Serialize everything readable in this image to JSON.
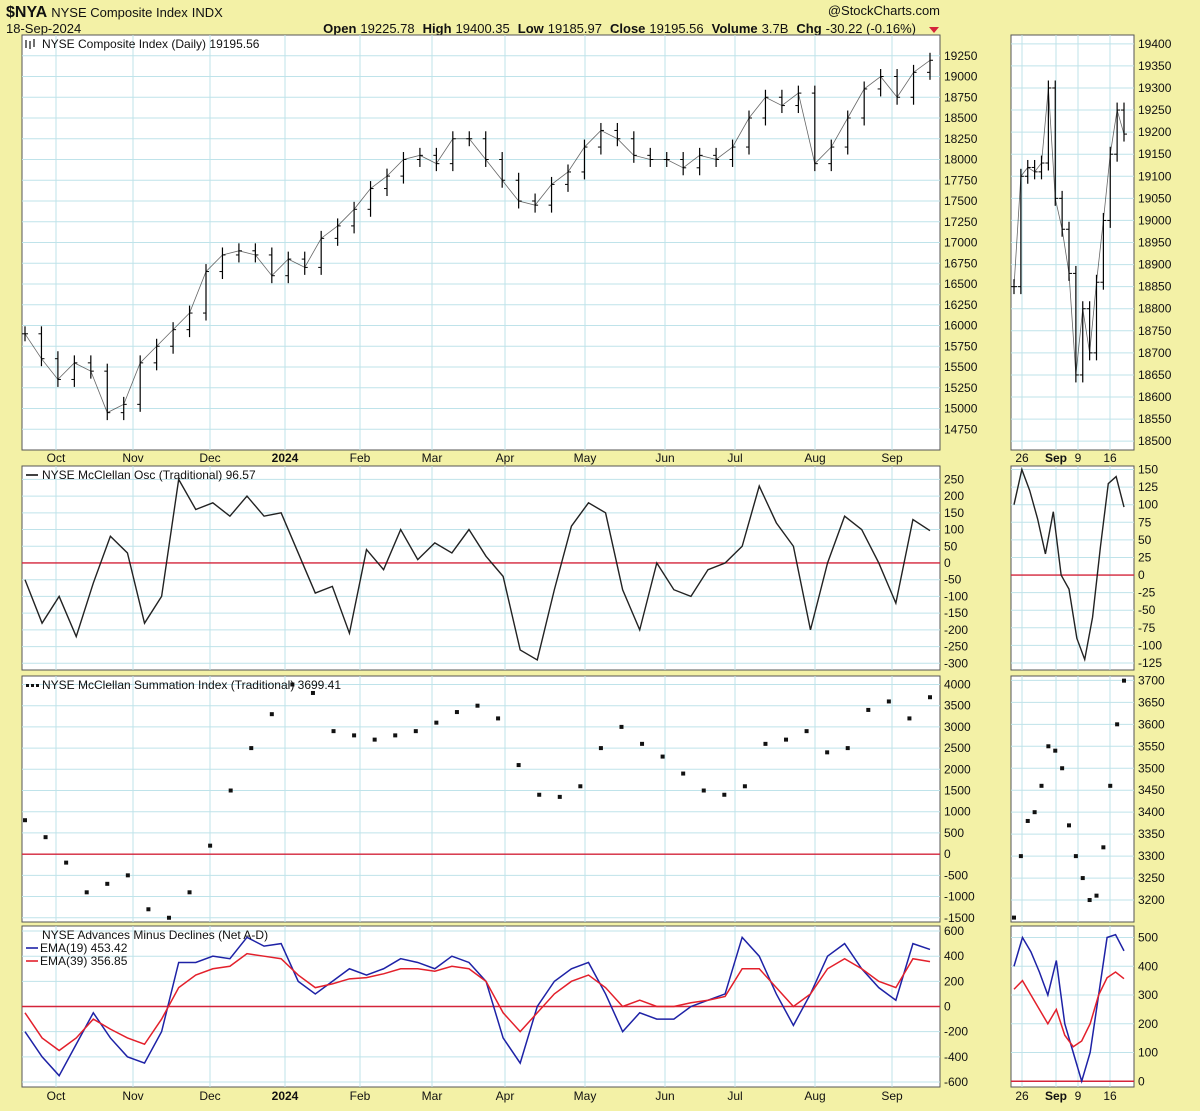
{
  "header": {
    "symbol": "$NYA",
    "name": "NYSE Composite Index",
    "exchange": "INDX",
    "date": "18-Sep-2024",
    "watermark": "@StockCharts.com",
    "open_label": "Open",
    "open": "19225.78",
    "high_label": "High",
    "high": "19400.35",
    "low_label": "Low",
    "low": "19185.97",
    "close_label": "Close",
    "close": "19195.56",
    "volume_label": "Volume",
    "volume": "3.7B",
    "chg_label": "Chg",
    "chg": "-30.22 (-0.16%)"
  },
  "colors": {
    "background": "#f3f1a6",
    "panel": "#ffffff",
    "grid": "#bfe3ea",
    "price": "#000000",
    "zero_line": "#d4243a",
    "ema19": "#1e22a6",
    "ema39": "#e3202b",
    "down_arrow": "#d4243a"
  },
  "x_axis": {
    "main_labels": [
      "Oct",
      "Nov",
      "Dec",
      "2024",
      "Feb",
      "Mar",
      "Apr",
      "May",
      "Jun",
      "Jul",
      "Aug",
      "Sep"
    ],
    "bold_label": "2024",
    "side_labels": [
      "26",
      "Sep",
      "9",
      "16"
    ],
    "side_bold_label": "Sep"
  },
  "chart_data": [
    {
      "type": "line",
      "title": "NYSE Composite Index (Daily) 19195.56",
      "style": "ohlc-bars",
      "x_range": [
        "2023-09-18",
        "2024-09-18"
      ],
      "ylim": [
        14500,
        19500
      ],
      "y_ticks": [
        14750,
        15000,
        15250,
        15500,
        15750,
        16000,
        16250,
        16500,
        16750,
        17000,
        17250,
        17500,
        17750,
        18000,
        18250,
        18500,
        18750,
        19000,
        19250
      ],
      "x": [
        "2023-09-18",
        "2023-09-28",
        "2023-10-04",
        "2023-10-12",
        "2023-10-20",
        "2023-10-27",
        "2023-11-01",
        "2023-11-08",
        "2023-11-15",
        "2023-11-22",
        "2023-12-01",
        "2023-12-08",
        "2023-12-15",
        "2023-12-22",
        "2023-12-29",
        "2024-01-05",
        "2024-01-12",
        "2024-01-17",
        "2024-01-24",
        "2024-02-01",
        "2024-02-09",
        "2024-02-16",
        "2024-02-23",
        "2024-03-01",
        "2024-03-08",
        "2024-03-15",
        "2024-03-21",
        "2024-03-28",
        "2024-04-05",
        "2024-04-12",
        "2024-04-16",
        "2024-04-19",
        "2024-04-26",
        "2024-05-03",
        "2024-05-10",
        "2024-05-15",
        "2024-05-21",
        "2024-05-28",
        "2024-05-31",
        "2024-06-07",
        "2024-06-14",
        "2024-06-21",
        "2024-06-28",
        "2024-07-05",
        "2024-07-12",
        "2024-07-16",
        "2024-07-24",
        "2024-07-31",
        "2024-08-05",
        "2024-08-09",
        "2024-08-16",
        "2024-08-23",
        "2024-08-30",
        "2024-09-06",
        "2024-09-12",
        "2024-09-18"
      ],
      "values": [
        15900,
        15600,
        15350,
        15550,
        15450,
        14950,
        15050,
        15550,
        15750,
        15950,
        16150,
        16650,
        16850,
        16900,
        16850,
        16600,
        16800,
        16700,
        17050,
        17200,
        17400,
        17650,
        17800,
        18000,
        18050,
        17950,
        18250,
        18250,
        18000,
        17750,
        17500,
        17450,
        17700,
        17850,
        18150,
        18350,
        18250,
        18050,
        18000,
        18000,
        17900,
        18050,
        18000,
        18150,
        18500,
        18750,
        18650,
        18800,
        17950,
        18150,
        18500,
        18850,
        19000,
        18750,
        19050,
        19195.56
      ]
    },
    {
      "type": "line",
      "title": "NYSE McClellan Osc (Traditional) 96.57",
      "ylim": [
        -320,
        290
      ],
      "y_ticks": [
        -300,
        -250,
        -200,
        -150,
        -100,
        -50,
        0,
        50,
        100,
        150,
        200,
        250
      ],
      "reference_line": 0,
      "values": [
        -50,
        -180,
        -100,
        -220,
        -60,
        80,
        30,
        -180,
        -100,
        250,
        160,
        180,
        140,
        200,
        140,
        150,
        30,
        -90,
        -70,
        -210,
        40,
        -20,
        100,
        10,
        60,
        30,
        100,
        20,
        -40,
        -260,
        -290,
        -80,
        110,
        180,
        150,
        -80,
        -200,
        0,
        -80,
        -100,
        -20,
        0,
        50,
        230,
        120,
        50,
        -200,
        0,
        140,
        100,
        0,
        -120,
        130,
        96.57
      ]
    },
    {
      "type": "scatter",
      "title": "NYSE McClellan Summation Index (Traditional) 3699.41",
      "ylim": [
        -1600,
        4200
      ],
      "y_ticks": [
        -1500,
        -1000,
        -500,
        0,
        500,
        1000,
        1500,
        2000,
        2500,
        3000,
        3500,
        4000
      ],
      "reference_line": 0,
      "values": [
        800,
        400,
        -200,
        -900,
        -700,
        -500,
        -1300,
        -1500,
        -900,
        200,
        1500,
        2500,
        3300,
        4000,
        3800,
        2900,
        2800,
        2700,
        2800,
        2900,
        3100,
        3350,
        3500,
        3200,
        2100,
        1400,
        1350,
        1600,
        2500,
        3000,
        2600,
        2300,
        1900,
        1500,
        1400,
        1600,
        2600,
        2700,
        2900,
        2400,
        2500,
        3400,
        3600,
        3200,
        3699.41
      ]
    },
    {
      "type": "line",
      "title": "NYSE Advances Minus Declines (Net A-D)",
      "ylim": [
        -640,
        640
      ],
      "y_ticks": [
        -600,
        -400,
        -200,
        0,
        200,
        400,
        600
      ],
      "reference_line": 0,
      "series": [
        {
          "name": "EMA(19) 453.42",
          "values": [
            -200,
            -400,
            -550,
            -300,
            -50,
            -250,
            -400,
            -450,
            -200,
            350,
            350,
            400,
            380,
            550,
            480,
            500,
            200,
            100,
            200,
            300,
            250,
            300,
            380,
            350,
            300,
            400,
            350,
            200,
            -250,
            -450,
            0,
            200,
            300,
            350,
            100,
            -200,
            -50,
            -100,
            -100,
            0,
            50,
            100,
            550,
            400,
            100,
            -150,
            100,
            400,
            500,
            300,
            150,
            50,
            500,
            453.42
          ]
        },
        {
          "name": "EMA(39) 356.85",
          "values": [
            -50,
            -250,
            -350,
            -250,
            -100,
            -180,
            -250,
            -300,
            -100,
            150,
            250,
            300,
            320,
            420,
            400,
            380,
            250,
            150,
            180,
            220,
            230,
            260,
            300,
            300,
            280,
            320,
            300,
            200,
            -50,
            -200,
            -50,
            100,
            200,
            250,
            150,
            0,
            50,
            0,
            0,
            30,
            50,
            80,
            300,
            300,
            150,
            0,
            100,
            300,
            380,
            300,
            200,
            150,
            380,
            356.85
          ]
        }
      ]
    },
    {
      "type": "line",
      "title": "",
      "style": "ohlc-bars",
      "ylim": [
        18480,
        19420
      ],
      "y_ticks": [
        18500,
        18550,
        18600,
        18650,
        18700,
        18750,
        18800,
        18850,
        18900,
        18950,
        19000,
        19050,
        19100,
        19150,
        19200,
        19250,
        19300,
        19350,
        19400
      ],
      "values": [
        18850,
        19100,
        19120,
        19110,
        19130,
        19300,
        19050,
        18980,
        18880,
        18650,
        18800,
        18700,
        18860,
        19000,
        19150,
        19250,
        19195.56
      ]
    },
    {
      "type": "line",
      "title": "",
      "ylim": [
        -135,
        155
      ],
      "y_ticks": [
        -125,
        -100,
        -75,
        -50,
        -25,
        0,
        25,
        50,
        75,
        100,
        125,
        150
      ],
      "reference_line": 0,
      "values": [
        100,
        150,
        120,
        80,
        30,
        90,
        0,
        -20,
        -90,
        -120,
        -60,
        40,
        130,
        140,
        96.57
      ]
    },
    {
      "type": "scatter",
      "title": "",
      "ylim": [
        3150,
        3710
      ],
      "y_ticks": [
        3200,
        3250,
        3300,
        3350,
        3400,
        3450,
        3500,
        3550,
        3600,
        3650,
        3700
      ],
      "values": [
        3160,
        3300,
        3380,
        3400,
        3460,
        3550,
        3540,
        3500,
        3370,
        3300,
        3250,
        3200,
        3210,
        3320,
        3460,
        3600,
        3699.41
      ]
    },
    {
      "type": "line",
      "title": "",
      "ylim": [
        -20,
        540
      ],
      "y_ticks": [
        0,
        100,
        200,
        300,
        400,
        500
      ],
      "reference_line": 0,
      "series": [
        {
          "name": "",
          "values": [
            400,
            500,
            450,
            380,
            300,
            420,
            200,
            100,
            0,
            100,
            300,
            500,
            510,
            453.42
          ]
        },
        {
          "name": "",
          "values": [
            320,
            350,
            300,
            250,
            200,
            250,
            160,
            120,
            140,
            200,
            300,
            360,
            380,
            356.85
          ]
        }
      ]
    }
  ]
}
